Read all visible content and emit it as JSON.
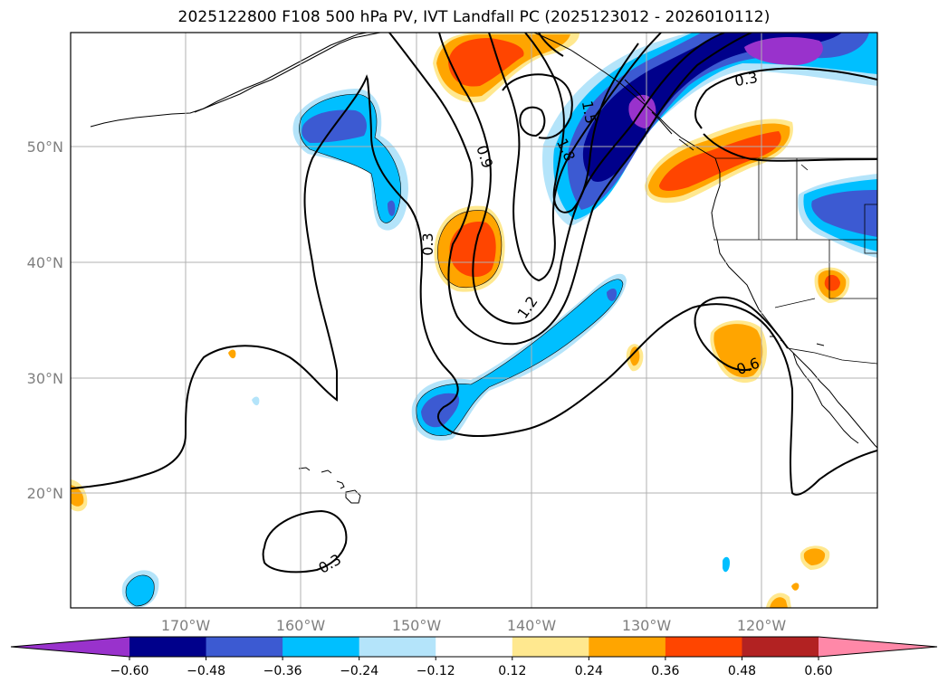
{
  "title": "2025122800 F108 500 hPa PV, IVT Landfall PC (2025123012 - 2026010112)",
  "lat_labels": [
    "50°N",
    "40°N",
    "30°N",
    "20°N"
  ],
  "lon_labels": [
    "170°W",
    "160°W",
    "150°W",
    "140°W",
    "130°W",
    "120°W"
  ],
  "colorbar": {
    "colors": [
      "#9932cc",
      "#00008b",
      "#3c5ad2",
      "#00bfff",
      "#b4e4fa",
      "#ffffff",
      "#ffe88f",
      "#ffa500",
      "#ff4500",
      "#b22222",
      "#ff88a8"
    ],
    "tick_labels": [
      "−0.60",
      "−0.48",
      "−0.36",
      "−0.24",
      "−0.12",
      "0.12",
      "0.24",
      "0.36",
      "0.48",
      "0.60"
    ]
  },
  "contour_labels": [
    "0.3",
    "0.9",
    "1.5",
    "1.8",
    "1.2",
    "0.3",
    "0.6",
    "0.3"
  ]
}
